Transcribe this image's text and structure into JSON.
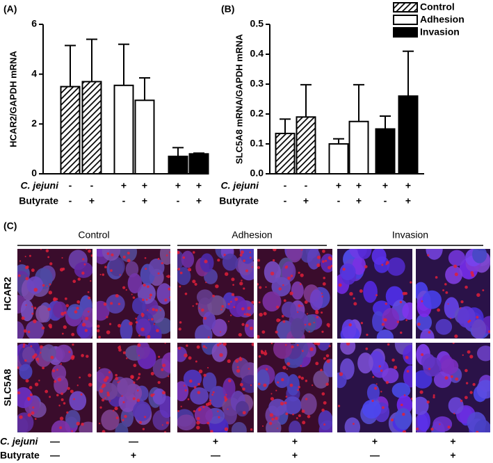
{
  "chart_data": [
    {
      "type": "bar",
      "panel_label": "(A)",
      "ylabel": "HCAR2/GAPDH mRNA",
      "ylim": [
        0,
        6
      ],
      "yticks": [
        0,
        2,
        4,
        6
      ],
      "legend": false,
      "series": [
        {
          "name": "Control",
          "pattern": "hatch",
          "color": "#000000",
          "values": [
            3.5,
            3.7
          ],
          "errors": [
            1.65,
            1.7
          ]
        },
        {
          "name": "Adhesion",
          "pattern": "solid",
          "color": "#ffffff",
          "values": [
            3.55,
            2.95
          ],
          "errors": [
            1.65,
            0.9
          ]
        },
        {
          "name": "Invasion",
          "pattern": "solid",
          "color": "#000000",
          "values": [
            0.7,
            0.8
          ],
          "errors": [
            0.35,
            0.03
          ]
        }
      ],
      "conditions": [
        {
          "label": "C. jejuni",
          "signs": [
            "-",
            "-",
            "+",
            "+",
            "+",
            "+"
          ]
        },
        {
          "label": "Butyrate",
          "signs": [
            "-",
            "+",
            "-",
            "+",
            "-",
            "+"
          ]
        }
      ]
    },
    {
      "type": "bar",
      "panel_label": "(B)",
      "ylabel": "SLC5A8 mRNA/GAPDH mRNA",
      "ylim": [
        0,
        0.5
      ],
      "yticks": [
        {
          "value": 0,
          "label": "0.0"
        },
        0.1,
        0.2,
        0.3,
        0.4,
        0.5
      ],
      "legend": true,
      "legend_position": "upper right",
      "series": [
        {
          "name": "Control",
          "pattern": "hatch",
          "color": "#000000",
          "values": [
            0.135,
            0.19
          ],
          "errors": [
            0.048,
            0.108
          ]
        },
        {
          "name": "Adhesion",
          "pattern": "solid",
          "color": "#ffffff",
          "values": [
            0.1,
            0.175
          ],
          "errors": [
            0.017,
            0.123
          ]
        },
        {
          "name": "Invasion",
          "pattern": "solid",
          "color": "#000000",
          "values": [
            0.15,
            0.26
          ],
          "errors": [
            0.043,
            0.15
          ]
        }
      ],
      "conditions": [
        {
          "label": "C. jejuni",
          "signs": [
            "-",
            "-",
            "+",
            "+",
            "+",
            "+"
          ]
        },
        {
          "label": "Butyrate",
          "signs": [
            "-",
            "+",
            "-",
            "+",
            "-",
            "+"
          ]
        }
      ]
    }
  ],
  "panel_c": {
    "panel_label": "(C)",
    "groups": [
      "Control",
      "Adhesion",
      "Invasion"
    ],
    "rows": [
      "HCAR2",
      "SLC5A8"
    ],
    "conditions": [
      {
        "label": "C. jejuni",
        "signs": [
          "—",
          "—",
          "+",
          "+",
          "+",
          "+"
        ]
      },
      {
        "label": "Butyrate",
        "signs": [
          "—",
          "+",
          "—",
          "+",
          "—",
          "+"
        ]
      }
    ]
  }
}
